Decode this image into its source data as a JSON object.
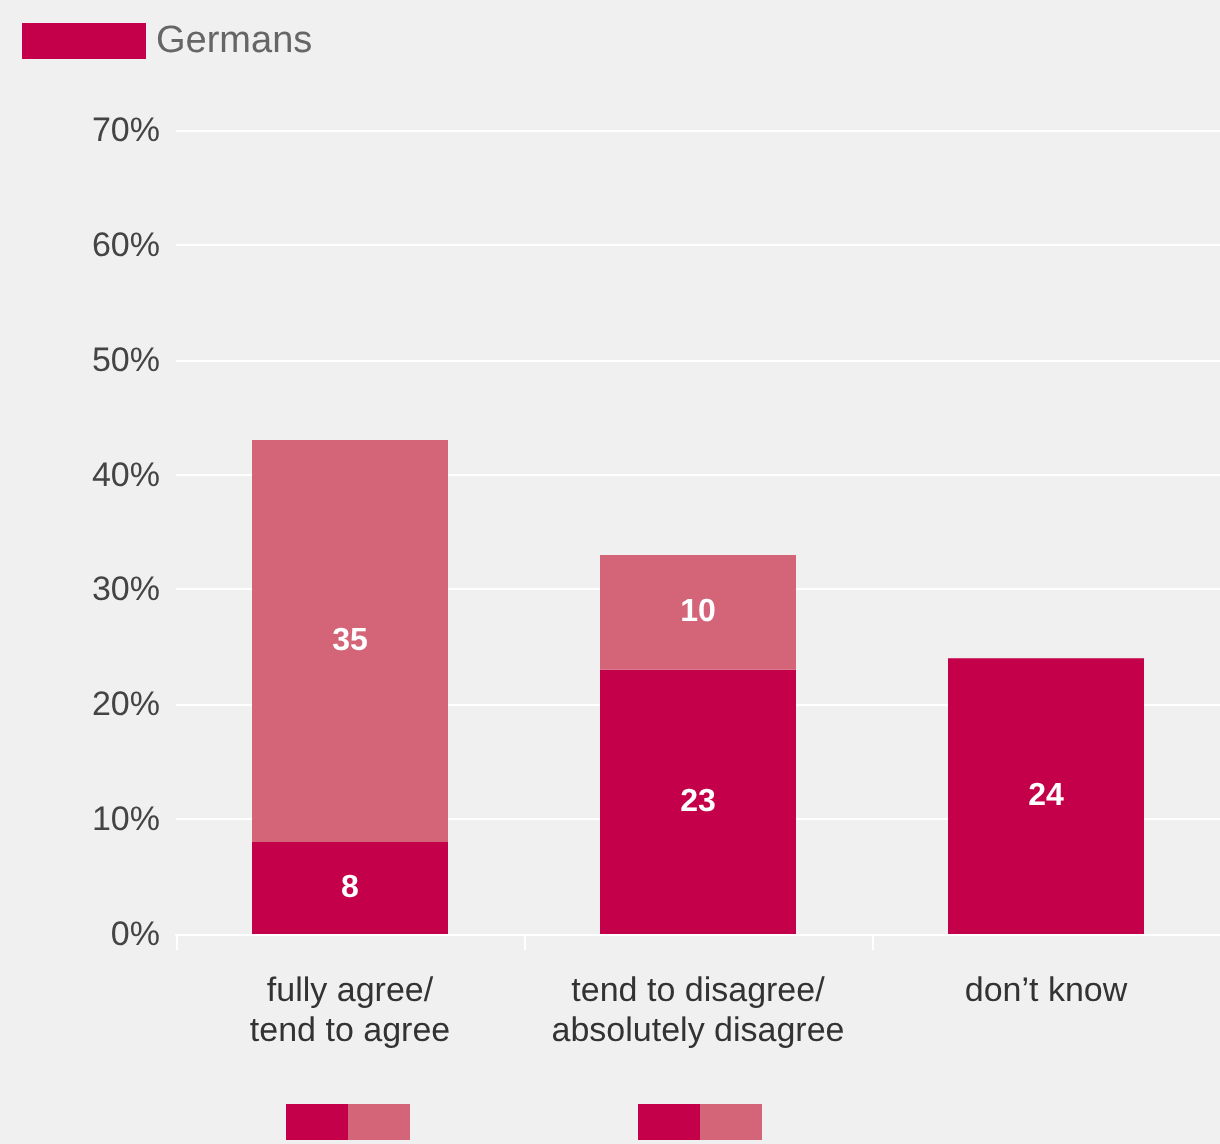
{
  "chart_data": {
    "type": "bar",
    "stacked": true,
    "categories": [
      "fully agree/\ntend to agree",
      "tend to disagree/\nabsolutely disagree",
      "don’t know"
    ],
    "series": [
      {
        "name": "Germans",
        "color": "#c5004b",
        "values": [
          8,
          23,
          24
        ]
      },
      {
        "color": "#d46477",
        "values": [
          35,
          10,
          null
        ]
      }
    ],
    "ylim": [
      0,
      70
    ],
    "yticks": [
      {
        "value": 0,
        "label": "0%"
      },
      {
        "value": 10,
        "label": "10%"
      },
      {
        "value": 20,
        "label": "20%"
      },
      {
        "value": 30,
        "label": "30%"
      },
      {
        "value": 40,
        "label": "40%"
      },
      {
        "value": 50,
        "label": "50%"
      },
      {
        "value": 60,
        "label": "60%"
      },
      {
        "value": 70,
        "label": "70%"
      }
    ],
    "grid": "y",
    "legend": "top left",
    "data_labels": true
  }
}
